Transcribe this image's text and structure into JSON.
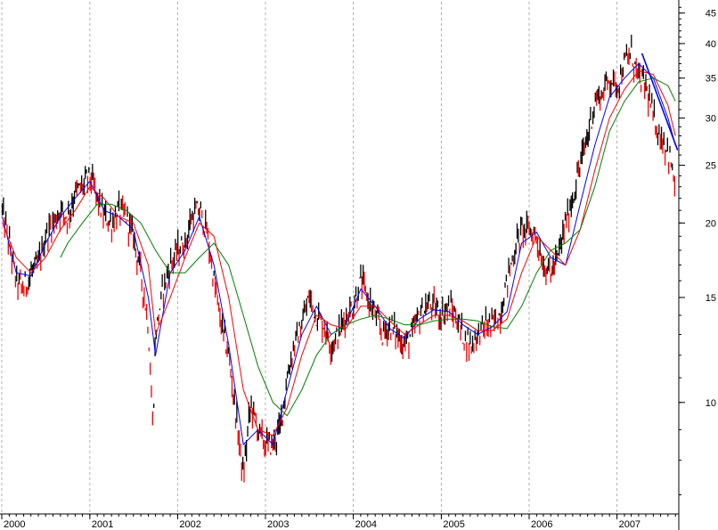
{
  "chart_data": {
    "type": "line",
    "title": "",
    "xlabel": "",
    "ylabel": "",
    "y_scale": "log",
    "ylim": [
      6.5,
      47
    ],
    "xlim": [
      "2000-01-01",
      "2007-09-15"
    ],
    "grid": {
      "x": true,
      "y": false,
      "style": "dashed-vertical"
    },
    "legend": "none",
    "x_tick_labels": [
      {
        "date": "2000-01-01",
        "label": "2000"
      },
      {
        "date": "2001-01-01",
        "label": "2001"
      },
      {
        "date": "2002-01-01",
        "label": "2002"
      },
      {
        "date": "2003-01-01",
        "label": "2003"
      },
      {
        "date": "2004-01-01",
        "label": "2004"
      },
      {
        "date": "2005-01-01",
        "label": "2005"
      },
      {
        "date": "2006-01-01",
        "label": "2006"
      },
      {
        "date": "2007-01-01",
        "label": "2007"
      }
    ],
    "y_tick_labels": [
      {
        "value": 45,
        "label": "45"
      },
      {
        "value": 40,
        "label": "40"
      },
      {
        "value": 35,
        "label": "35"
      },
      {
        "value": 30,
        "label": "30"
      },
      {
        "value": 25,
        "label": "25"
      },
      {
        "value": 20,
        "label": "20"
      },
      {
        "value": 15,
        "label": "15"
      },
      {
        "value": 10,
        "label": "10"
      }
    ],
    "colors": {
      "price_bar": "#000000",
      "price_down": "#ff0000",
      "ma_short": "#0000ff",
      "ma_medium": "#ff0000",
      "ma_long": "#008000",
      "trendline": "#0000ff",
      "grid": "#b0b0b0"
    },
    "price": {
      "dates": [
        "2000-01-03",
        "2000-02-01",
        "2000-03-01",
        "2000-04-01",
        "2000-05-01",
        "2000-06-01",
        "2000-07-01",
        "2000-08-01",
        "2000-09-01",
        "2000-10-01",
        "2000-11-01",
        "2000-12-01",
        "2001-01-01",
        "2001-02-01",
        "2001-03-01",
        "2001-04-01",
        "2001-05-01",
        "2001-06-01",
        "2001-07-01",
        "2001-08-01",
        "2001-09-01",
        "2001-09-20",
        "2001-10-01",
        "2001-11-01",
        "2001-12-01",
        "2002-01-01",
        "2002-02-01",
        "2002-03-01",
        "2002-04-01",
        "2002-05-01",
        "2002-06-01",
        "2002-07-01",
        "2002-08-01",
        "2002-09-01",
        "2002-10-01",
        "2002-11-01",
        "2002-12-01",
        "2003-01-01",
        "2003-02-01",
        "2003-03-01",
        "2003-04-01",
        "2003-05-01",
        "2003-06-01",
        "2003-07-01",
        "2003-08-01",
        "2003-09-01",
        "2003-10-01",
        "2003-11-01",
        "2003-12-01",
        "2004-01-01",
        "2004-02-01",
        "2004-03-01",
        "2004-04-01",
        "2004-05-01",
        "2004-06-01",
        "2004-07-01",
        "2004-08-01",
        "2004-09-01",
        "2004-10-01",
        "2004-11-01",
        "2004-12-01",
        "2005-01-01",
        "2005-02-01",
        "2005-03-01",
        "2005-04-01",
        "2005-05-01",
        "2005-06-01",
        "2005-07-01",
        "2005-08-01",
        "2005-09-01",
        "2005-10-01",
        "2005-11-01",
        "2005-12-01",
        "2006-01-01",
        "2006-02-01",
        "2006-03-01",
        "2006-04-01",
        "2006-05-01",
        "2006-06-01",
        "2006-07-01",
        "2006-08-01",
        "2006-09-01",
        "2006-10-01",
        "2006-11-01",
        "2006-12-01",
        "2007-01-01",
        "2007-02-01",
        "2007-03-01",
        "2007-04-01",
        "2007-05-01",
        "2007-06-01",
        "2007-07-01",
        "2007-08-01",
        "2007-09-01"
      ],
      "values": [
        21.0,
        18.5,
        16.0,
        15.5,
        16.5,
        17.0,
        19.0,
        20.0,
        21.0,
        20.5,
        22.5,
        23.0,
        24.0,
        22.0,
        20.5,
        20.0,
        21.0,
        20.5,
        19.0,
        16.5,
        13.5,
        9.0,
        13.0,
        15.5,
        17.0,
        18.0,
        18.5,
        20.5,
        21.0,
        19.5,
        16.0,
        13.5,
        12.0,
        9.5,
        7.5,
        10.0,
        9.0,
        8.5,
        8.5,
        9.0,
        11.0,
        12.5,
        13.5,
        15.0,
        14.0,
        13.5,
        12.5,
        13.0,
        14.0,
        14.5,
        16.0,
        15.0,
        14.0,
        13.0,
        13.5,
        13.0,
        12.5,
        13.0,
        14.0,
        14.5,
        14.5,
        14.0,
        14.5,
        14.0,
        13.0,
        12.5,
        13.0,
        13.5,
        13.5,
        14.0,
        16.0,
        18.0,
        19.5,
        19.5,
        19.0,
        17.0,
        16.5,
        17.5,
        20.0,
        22.0,
        25.0,
        28.0,
        32.0,
        33.0,
        35.0,
        34.0,
        37.0,
        38.5,
        35.0,
        34.0,
        30.0,
        28.0,
        26.5,
        23.0
      ]
    },
    "series": [
      {
        "id": "ma_short",
        "color": "#0000ff",
        "dates": [
          "2000-01-03",
          "2000-03-01",
          "2000-05-01",
          "2000-07-01",
          "2000-09-01",
          "2000-11-01",
          "2001-01-01",
          "2001-03-01",
          "2001-05-01",
          "2001-07-01",
          "2001-09-01",
          "2001-10-01",
          "2001-12-01",
          "2002-02-01",
          "2002-04-01",
          "2002-06-01",
          "2002-08-01",
          "2002-10-01",
          "2002-12-01",
          "2003-02-01",
          "2003-04-01",
          "2003-06-01",
          "2003-08-01",
          "2003-10-01",
          "2003-12-01",
          "2004-02-01",
          "2004-04-01",
          "2004-06-01",
          "2004-08-01",
          "2004-10-01",
          "2004-12-01",
          "2005-02-01",
          "2005-04-01",
          "2005-06-01",
          "2005-08-01",
          "2005-10-01",
          "2005-12-01",
          "2006-02-01",
          "2006-04-01",
          "2006-06-01",
          "2006-08-01",
          "2006-10-01",
          "2006-12-01",
          "2007-02-01",
          "2007-04-01",
          "2007-06-01",
          "2007-08-01",
          "2007-09-01"
        ],
        "values": [
          20.5,
          16.5,
          16.3,
          18.5,
          20.5,
          22.0,
          23.5,
          21.0,
          20.5,
          19.5,
          15.0,
          12.0,
          16.5,
          18.0,
          20.5,
          17.0,
          12.5,
          8.5,
          9.0,
          8.5,
          10.5,
          13.0,
          14.5,
          13.0,
          13.5,
          15.5,
          14.5,
          13.3,
          12.8,
          13.8,
          14.3,
          14.2,
          13.5,
          13.0,
          13.4,
          14.2,
          18.5,
          19.3,
          17.5,
          17.0,
          21.5,
          27.0,
          32.5,
          35.0,
          37.0,
          35.0,
          30.0,
          27.0
        ]
      },
      {
        "id": "ma_medium",
        "color": "#ff0000",
        "dates": [
          "2000-01-03",
          "2000-03-01",
          "2000-05-01",
          "2000-07-01",
          "2000-09-01",
          "2000-11-01",
          "2001-01-01",
          "2001-03-01",
          "2001-05-01",
          "2001-07-01",
          "2001-09-01",
          "2001-10-01",
          "2001-12-01",
          "2002-02-01",
          "2002-04-01",
          "2002-06-01",
          "2002-08-01",
          "2002-10-01",
          "2002-12-01",
          "2003-02-01",
          "2003-04-01",
          "2003-06-01",
          "2003-08-01",
          "2003-10-01",
          "2003-12-01",
          "2004-02-01",
          "2004-04-01",
          "2004-06-01",
          "2004-08-01",
          "2004-10-01",
          "2004-12-01",
          "2005-02-01",
          "2005-04-01",
          "2005-06-01",
          "2005-08-01",
          "2005-10-01",
          "2005-12-01",
          "2006-02-01",
          "2006-04-01",
          "2006-06-01",
          "2006-08-01",
          "2006-10-01",
          "2006-12-01",
          "2007-02-01",
          "2007-04-01",
          "2007-06-01",
          "2007-08-01",
          "2007-09-01"
        ],
        "values": [
          20.0,
          17.5,
          16.5,
          17.5,
          19.5,
          21.0,
          23.0,
          22.0,
          20.5,
          20.0,
          17.0,
          13.0,
          15.0,
          17.5,
          20.0,
          19.0,
          15.0,
          10.5,
          9.0,
          8.8,
          9.8,
          12.0,
          14.0,
          13.5,
          13.3,
          14.5,
          14.5,
          13.7,
          13.0,
          13.5,
          14.0,
          14.0,
          13.7,
          13.2,
          13.2,
          13.8,
          16.5,
          19.0,
          18.0,
          17.0,
          19.5,
          24.5,
          30.0,
          33.5,
          36.0,
          35.5,
          31.5,
          28.0
        ]
      },
      {
        "id": "ma_long",
        "color": "#008000",
        "dates": [
          "2000-09-01",
          "2000-10-01",
          "2000-12-01",
          "2001-02-01",
          "2001-04-01",
          "2001-06-01",
          "2001-08-01",
          "2001-10-01",
          "2001-12-01",
          "2002-02-01",
          "2002-04-01",
          "2002-06-01",
          "2002-08-01",
          "2002-10-01",
          "2002-12-01",
          "2003-02-01",
          "2003-04-01",
          "2003-06-01",
          "2003-08-01",
          "2003-10-01",
          "2003-12-01",
          "2004-02-01",
          "2004-04-01",
          "2004-06-01",
          "2004-08-01",
          "2004-10-01",
          "2004-12-01",
          "2005-02-01",
          "2005-04-01",
          "2005-06-01",
          "2005-08-01",
          "2005-10-01",
          "2005-12-01",
          "2006-02-01",
          "2006-04-01",
          "2006-06-01",
          "2006-08-01",
          "2006-10-01",
          "2006-12-01",
          "2007-02-01",
          "2007-04-01",
          "2007-06-01",
          "2007-08-01",
          "2007-09-01"
        ],
        "values": [
          17.5,
          18.5,
          20.0,
          21.5,
          21.5,
          21.0,
          20.0,
          18.0,
          16.5,
          16.5,
          17.5,
          18.5,
          17.0,
          14.0,
          11.5,
          10.0,
          9.5,
          10.5,
          12.0,
          13.0,
          13.5,
          13.8,
          14.0,
          13.8,
          13.5,
          13.5,
          13.7,
          13.8,
          13.8,
          13.7,
          13.4,
          13.3,
          14.5,
          16.5,
          18.0,
          18.5,
          19.5,
          23.0,
          28.5,
          32.0,
          34.5,
          35.0,
          34.0,
          32.0
        ]
      }
    ],
    "annotations": [
      {
        "type": "trendline",
        "color": "#0000ff",
        "points": [
          [
            "2007-04-15",
            38.5
          ],
          [
            "2007-09-10",
            26.5
          ]
        ]
      }
    ]
  }
}
